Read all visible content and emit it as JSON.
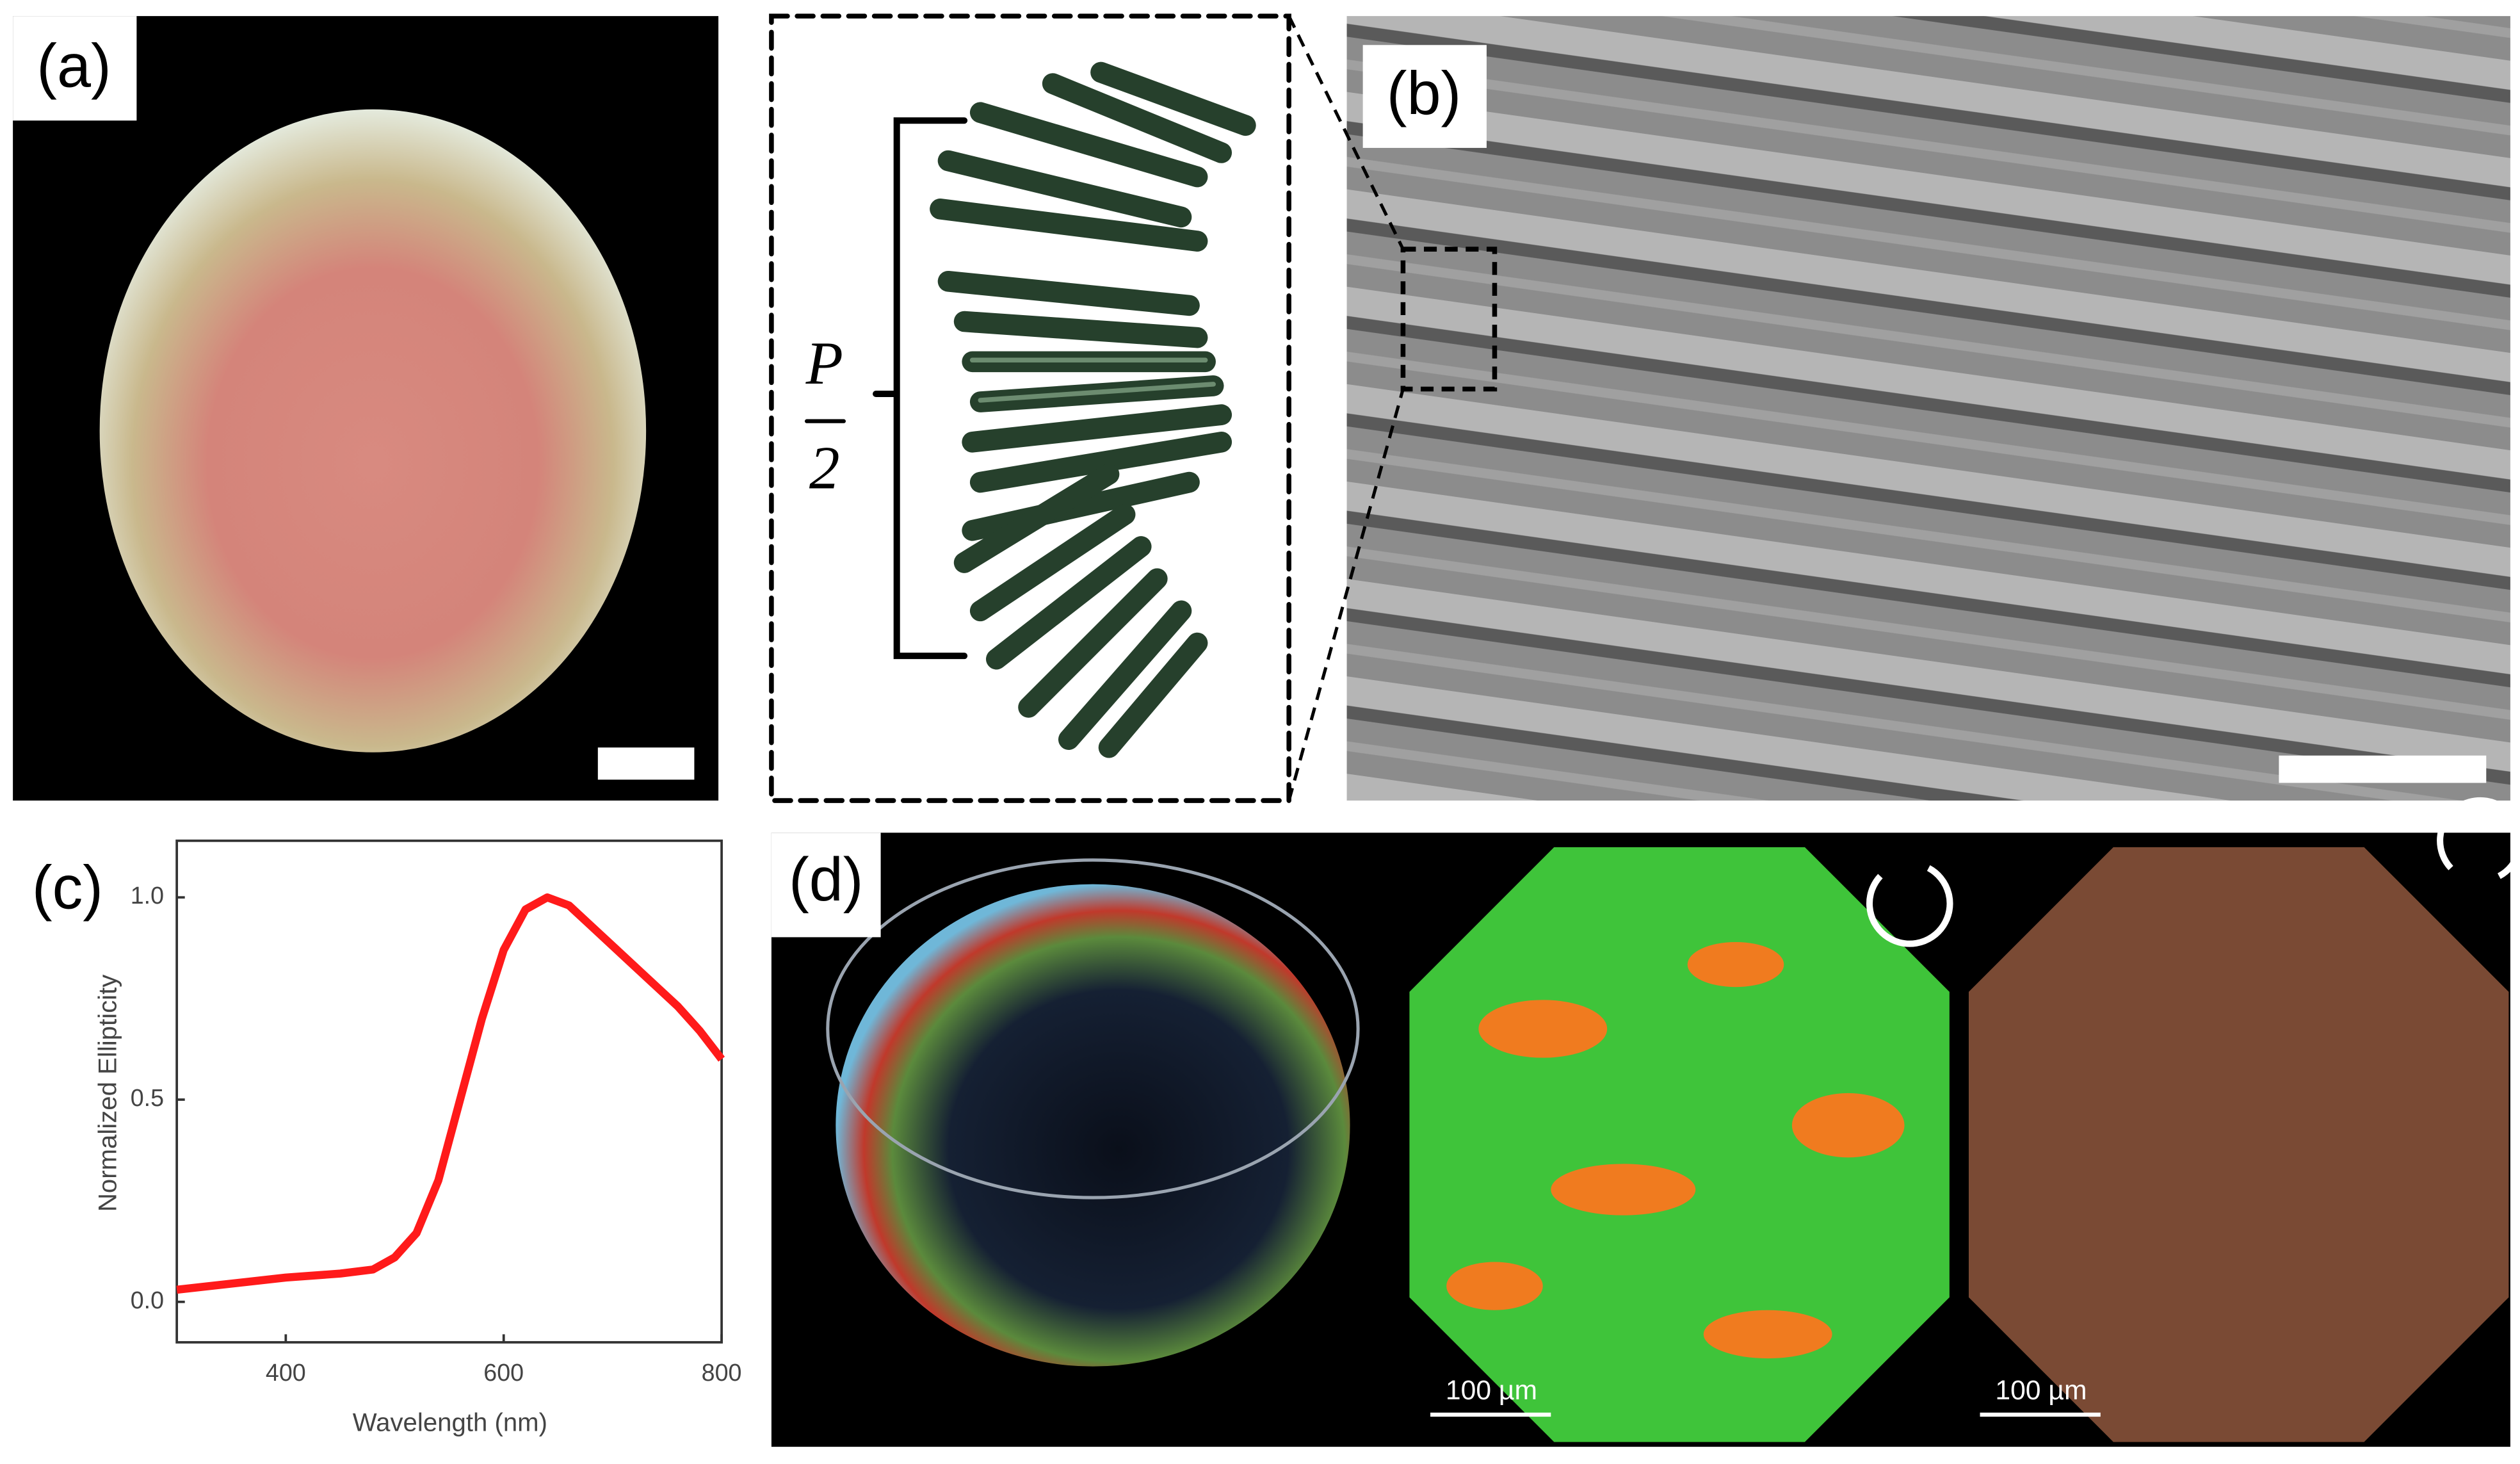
{
  "figure": {
    "panel_a": {
      "label": "(a)"
    },
    "panel_b": {
      "label": "(b)",
      "schematic": {
        "numerator": "P",
        "denominator": "2"
      }
    },
    "panel_c": {
      "label": "(c)"
    },
    "panel_d": {
      "label": "(d)",
      "scale_bar_1": "100 µm",
      "scale_bar_2": "100 µm"
    }
  },
  "chart_data": {
    "type": "line",
    "x_label": "Wavelength (nm)",
    "y_label": "Normalized Ellipticity",
    "x": [
      300,
      400,
      450,
      480,
      500,
      520,
      540,
      560,
      580,
      600,
      620,
      640,
      660,
      680,
      700,
      720,
      740,
      760,
      780,
      800
    ],
    "series": [
      {
        "color": "#ff1a1a",
        "values": [
          0.03,
          0.06,
          0.07,
          0.08,
          0.11,
          0.17,
          0.3,
          0.5,
          0.7,
          0.87,
          0.97,
          1.0,
          0.98,
          0.93,
          0.88,
          0.83,
          0.78,
          0.73,
          0.67,
          0.6
        ]
      }
    ],
    "xlim": [
      300,
      800
    ],
    "ylim": [
      -0.1,
      1.14
    ],
    "xticks": [
      400,
      600,
      800
    ],
    "yticks": [
      {
        "value": 0,
        "label": "0.0"
      },
      {
        "value": 0.5,
        "label": "0.5"
      },
      {
        "value": 1,
        "label": "1.0"
      }
    ]
  }
}
